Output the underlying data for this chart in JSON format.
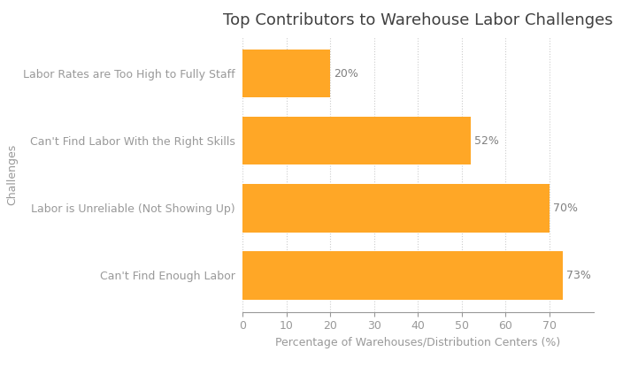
{
  "title": "Top Contributors to Warehouse Labor Challenges",
  "categories": [
    "Labor Rates are Too High to Fully Staff",
    "Can't Find Labor With the Right Skills",
    "Labor is Unreliable (Not Showing Up)",
    "Can't Find Enough Labor"
  ],
  "values": [
    20,
    52,
    70,
    73
  ],
  "bar_color": "#FFA726",
  "xlabel": "Percentage of Warehouses/Distribution Centers (%)",
  "ylabel": "Challenges",
  "xlim": [
    0,
    80
  ],
  "xticks": [
    0,
    10,
    20,
    30,
    40,
    50,
    60,
    70
  ],
  "background_color": "#FFFFFF",
  "label_color": "#808080",
  "title_color": "#404040",
  "axis_color": "#999999",
  "grid_color": "#CCCCCC",
  "title_fontsize": 13,
  "axis_label_fontsize": 9,
  "tick_fontsize": 9,
  "value_fontsize": 9,
  "bar_height": 0.72
}
